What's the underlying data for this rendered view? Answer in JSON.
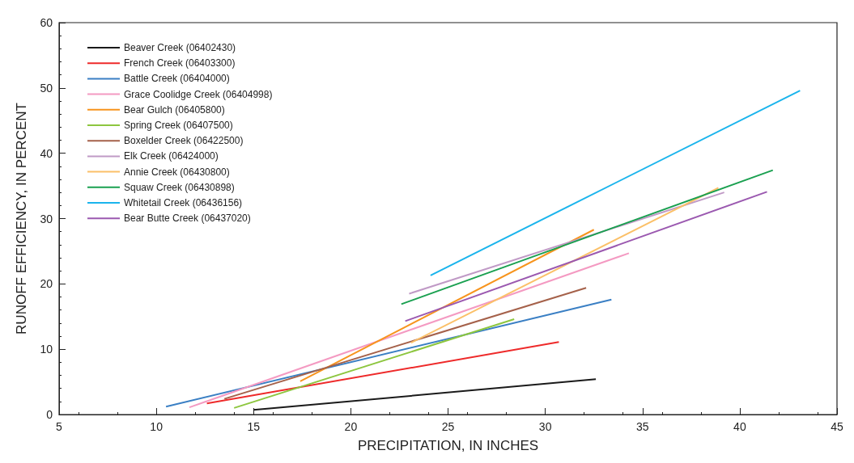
{
  "chart_data": {
    "type": "line",
    "xlabel": "PRECIPITATION, IN INCHES",
    "ylabel": "RUNOFF EFFICIENCY, IN PERCENT",
    "xlim": [
      5,
      45
    ],
    "xticks": [
      5,
      10,
      15,
      20,
      25,
      30,
      35,
      40,
      45
    ],
    "ylim": [
      0,
      60
    ],
    "yticks": [
      0,
      10,
      20,
      30,
      40,
      50,
      60
    ],
    "grid": false,
    "legend": "top left",
    "marker": "none",
    "line_style": "solid",
    "series": [
      {
        "name": "Beaver Creek (06402430)",
        "color": "#1a1a1a",
        "x": [
          15.0,
          32.6
        ],
        "values": [
          0.7,
          5.4
        ]
      },
      {
        "name": "French Creek (06403300)",
        "color": "#ee2a2a",
        "x": [
          12.6,
          30.7
        ],
        "values": [
          1.7,
          11.1
        ]
      },
      {
        "name": "Battle Creek (06404000)",
        "color": "#3a7fc4",
        "x": [
          10.5,
          33.4
        ],
        "values": [
          1.2,
          17.6
        ]
      },
      {
        "name": "Grace Coolidge Creek (06404998)",
        "color": "#f49ac2",
        "x": [
          11.7,
          34.3
        ],
        "values": [
          1.1,
          24.7
        ]
      },
      {
        "name": "Bear Gulch (06405800)",
        "color": "#f7941d",
        "x": [
          17.4,
          32.5
        ],
        "values": [
          5.1,
          28.3
        ]
      },
      {
        "name": "Spring Creek (06407500)",
        "color": "#8dc63f",
        "x": [
          14.0,
          28.4
        ],
        "values": [
          1.0,
          14.6
        ]
      },
      {
        "name": "Boxelder Creek (06422500)",
        "color": "#a5614a",
        "x": [
          13.5,
          32.1
        ],
        "values": [
          2.4,
          19.4
        ]
      },
      {
        "name": "Elk Creek (06424000)",
        "color": "#c09ac6",
        "x": [
          23.0,
          39.2
        ],
        "values": [
          18.5,
          34.0
        ]
      },
      {
        "name": "Annie Creek (06430800)",
        "color": "#fbc068",
        "x": [
          23.1,
          38.9
        ],
        "values": [
          11.0,
          34.7
        ]
      },
      {
        "name": "Squaw Creek (06430898)",
        "color": "#1aa050",
        "x": [
          22.6,
          41.7
        ],
        "values": [
          16.9,
          37.4
        ]
      },
      {
        "name": "Whitetail Creek (06436156)",
        "color": "#1ab4ec",
        "x": [
          24.1,
          43.1
        ],
        "values": [
          21.3,
          49.6
        ]
      },
      {
        "name": "Bear Butte Creek (06437020)",
        "color": "#9b59b0",
        "x": [
          22.8,
          41.4
        ],
        "values": [
          14.3,
          34.1
        ]
      }
    ]
  }
}
